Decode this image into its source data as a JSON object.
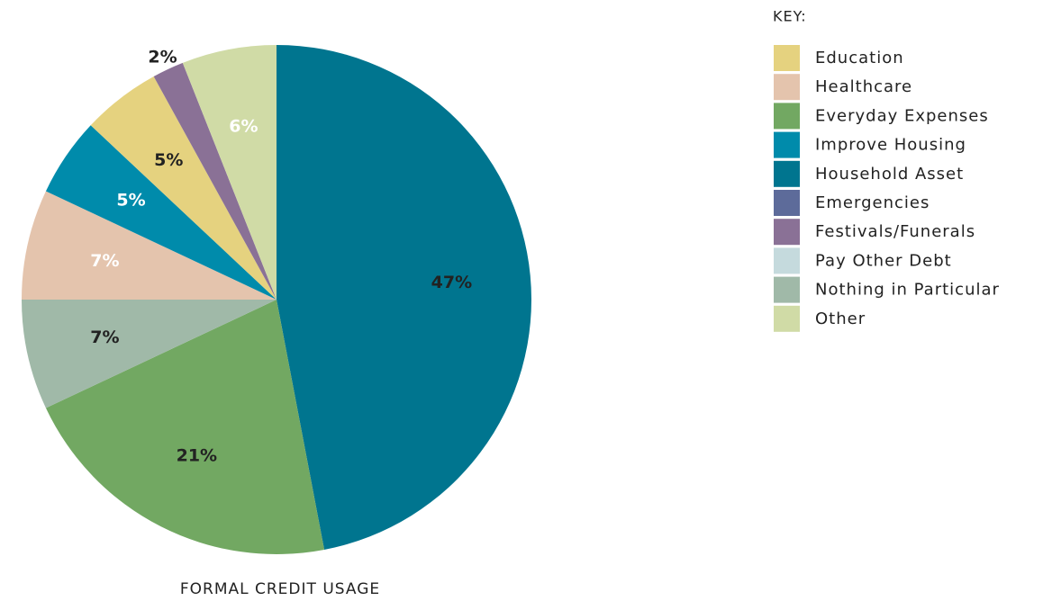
{
  "chart_data": {
    "type": "pie",
    "title": "FORMAL CREDIT USAGE",
    "legend_title": "KEY:",
    "legend": [
      {
        "name": "Education",
        "color": "#e5d27f"
      },
      {
        "name": "Healthcare",
        "color": "#e4c4ad"
      },
      {
        "name": "Everyday Expenses",
        "color": "#72a862"
      },
      {
        "name": "Improve Housing",
        "color": "#008bab"
      },
      {
        "name": "Household Asset",
        "color": "#00758f"
      },
      {
        "name": "Emergencies",
        "color": "#5d6b9a"
      },
      {
        "name": "Festivals/Funerals",
        "color": "#8a7196"
      },
      {
        "name": "Pay Other Debt",
        "color": "#c5dadd"
      },
      {
        "name": "Nothing in Particular",
        "color": "#a0b9a8"
      },
      {
        "name": "Other",
        "color": "#d0dba6"
      }
    ],
    "values": [
      47,
      21,
      7,
      7,
      5,
      5,
      2,
      6
    ],
    "value_labels": [
      "47%",
      "21%",
      "7%",
      "7%",
      "5%",
      "5%",
      "2%",
      "6%"
    ],
    "colors": [
      "#00758f",
      "#72a862",
      "#a0b9a8",
      "#e4c4ad",
      "#008bab",
      "#e5d27f",
      "#8a7196",
      "#d0dba6"
    ],
    "label_colors": [
      "#222",
      "#222",
      "#222",
      "#fff",
      "#fff",
      "#222",
      "#222",
      "#fff"
    ]
  }
}
